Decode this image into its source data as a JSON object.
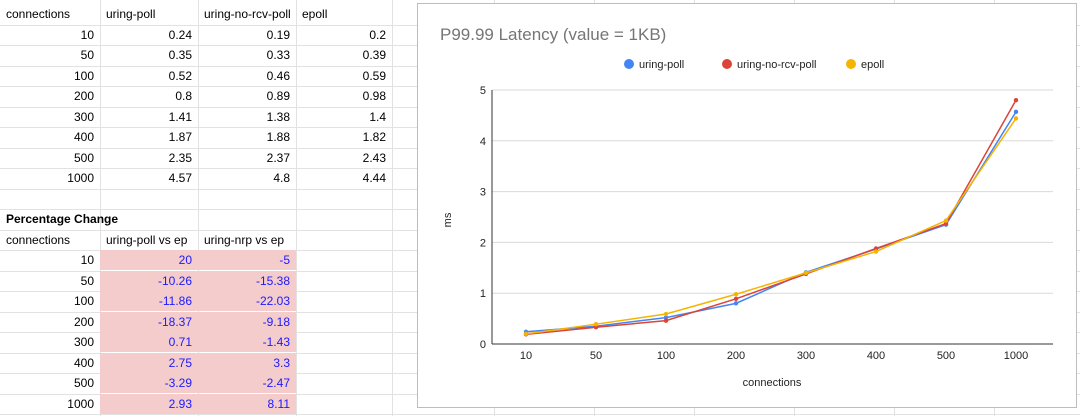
{
  "table1": {
    "headers": [
      "connections",
      "uring-poll",
      "uring-no-rcv-poll",
      "epoll"
    ],
    "rows": [
      [
        "10",
        "0.24",
        "0.19",
        "0.2"
      ],
      [
        "50",
        "0.35",
        "0.33",
        "0.39"
      ],
      [
        "100",
        "0.52",
        "0.46",
        "0.59"
      ],
      [
        "200",
        "0.8",
        "0.89",
        "0.98"
      ],
      [
        "300",
        "1.41",
        "1.38",
        "1.4"
      ],
      [
        "400",
        "1.87",
        "1.88",
        "1.82"
      ],
      [
        "500",
        "2.35",
        "2.37",
        "2.43"
      ],
      [
        "1000",
        "4.57",
        "4.8",
        "4.44"
      ]
    ]
  },
  "table2": {
    "title": "Percentage Change",
    "headers": [
      "connections",
      "uring-poll vs ep",
      "uring-nrp vs ep"
    ],
    "rows": [
      [
        "10",
        "20",
        "-5"
      ],
      [
        "50",
        "-10.26",
        "-15.38"
      ],
      [
        "100",
        "-11.86",
        "-22.03"
      ],
      [
        "200",
        "-18.37",
        "-9.18"
      ],
      [
        "300",
        "0.71",
        "-1.43"
      ],
      [
        "400",
        "2.75",
        "3.3"
      ],
      [
        "500",
        "-3.29",
        "-2.47"
      ],
      [
        "1000",
        "2.93",
        "8.11"
      ]
    ]
  },
  "colors": {
    "highlight_fill": "#f4cccc",
    "highlight_text": "#1a1aff",
    "uring_poll": "#4285f4",
    "uring_no_rcv_poll": "#db4437",
    "epoll": "#f4b400"
  },
  "chart_data": {
    "type": "line",
    "title": "P99.99 Latency (value = 1KB)",
    "xlabel": "connections",
    "ylabel": "ms",
    "categories": [
      "10",
      "50",
      "100",
      "200",
      "300",
      "400",
      "500",
      "1000"
    ],
    "series": [
      {
        "name": "uring-poll",
        "color": "#4285f4",
        "values": [
          0.24,
          0.35,
          0.52,
          0.8,
          1.41,
          1.87,
          2.35,
          4.57
        ]
      },
      {
        "name": "uring-no-rcv-poll",
        "color": "#db4437",
        "values": [
          0.19,
          0.33,
          0.46,
          0.89,
          1.38,
          1.88,
          2.37,
          4.8
        ]
      },
      {
        "name": "epoll",
        "color": "#f4b400",
        "values": [
          0.2,
          0.39,
          0.59,
          0.98,
          1.4,
          1.82,
          2.43,
          4.44
        ]
      }
    ],
    "ylim": [
      0,
      5
    ],
    "yticks": [
      "0",
      "1",
      "2",
      "3",
      "4",
      "5"
    ],
    "grid": true,
    "legend": "top-center"
  }
}
